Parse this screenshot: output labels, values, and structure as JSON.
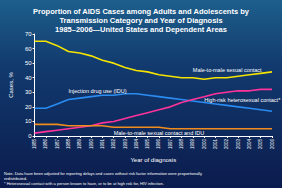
{
  "chart_data": {
    "type": "line",
    "title": "Proportion of AIDS Cases among Adults and Adolescents by\nTransmission Category and Year of Diagnosis\n1985–2006—United States and Dependent Areas",
    "xlabel": "Year of diagnosis",
    "ylabel": "Cases, %",
    "categories": [
      "1985",
      "1986",
      "1987",
      "1988",
      "1989",
      "1990",
      "1991",
      "1992",
      "1993",
      "1994",
      "1995",
      "1996",
      "1997",
      "1998",
      "1999",
      "2000",
      "2001",
      "2002",
      "2003",
      "2004",
      "2005",
      "2006"
    ],
    "ylim": [
      0,
      70
    ],
    "yticks": [
      0,
      10,
      20,
      30,
      40,
      50,
      60,
      70
    ],
    "grid": false,
    "series": [
      {
        "name": "Male-to-male sexual contact",
        "color": "#f5e400",
        "values": [
          65,
          65,
          62,
          58,
          57,
          55,
          52,
          50,
          47,
          45,
          44,
          42,
          41,
          40,
          40,
          39,
          40,
          40,
          41,
          42,
          43,
          44
        ]
      },
      {
        "name": "Injection drug use (IDU)",
        "color": "#2a8cf0",
        "values": [
          19,
          19,
          22,
          25,
          26,
          27,
          28,
          28,
          29,
          29,
          28,
          27,
          26,
          25,
          24,
          23,
          22,
          21,
          20,
          19,
          18,
          17
        ]
      },
      {
        "name": "High-risk heterosexual contact*",
        "color": "#ff3399",
        "values": [
          2,
          3,
          4,
          5,
          6,
          7,
          9,
          10,
          12,
          14,
          16,
          18,
          20,
          23,
          25,
          27,
          29,
          30,
          31,
          31,
          32,
          32
        ]
      },
      {
        "name": "Male-to-male sexual contact and IDU",
        "color": "#f08c1e",
        "values": [
          8,
          8,
          8,
          7,
          7,
          7,
          7,
          6,
          6,
          6,
          6,
          6,
          5,
          5,
          5,
          5,
          5,
          5,
          5,
          5,
          5,
          5
        ]
      }
    ],
    "annotations": [
      "Note. Data have been adjusted for reporting delays and cases without risk factor information were proportionally\nredistributed.",
      "* Heterosexual contact with a person known to have, or to be at high risk for, HIV infection."
    ]
  }
}
